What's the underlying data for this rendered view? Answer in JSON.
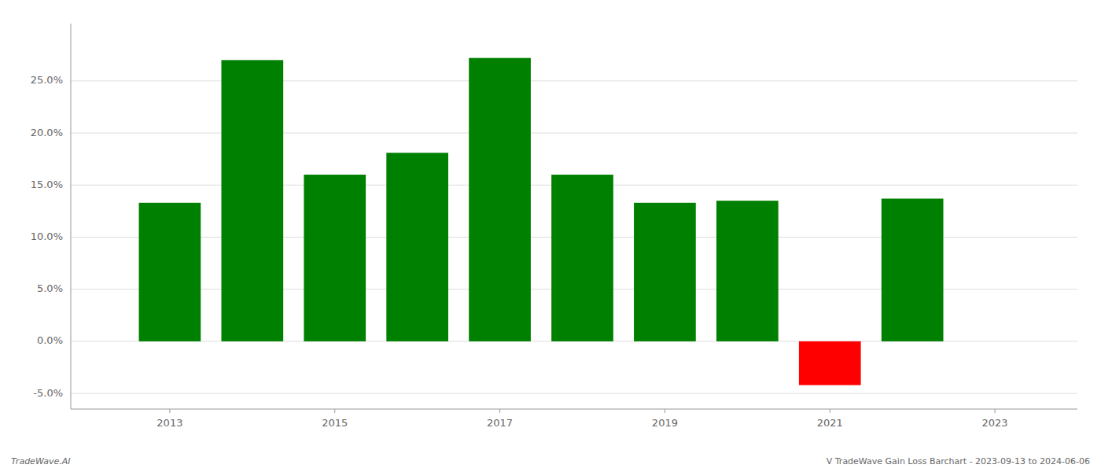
{
  "chart_data": {
    "type": "bar",
    "x": [
      2013,
      2014,
      2015,
      2016,
      2017,
      2018,
      2019,
      2020,
      2021,
      2022
    ],
    "values": [
      0.133,
      0.27,
      0.16,
      0.181,
      0.272,
      0.16,
      0.133,
      0.135,
      -0.042,
      0.137
    ],
    "colors": [
      "#008000",
      "#008000",
      "#008000",
      "#008000",
      "#008000",
      "#008000",
      "#008000",
      "#008000",
      "#ff0000",
      "#008000"
    ],
    "xlim": [
      2011.8,
      2024.0
    ],
    "xticks": [
      2013,
      2015,
      2017,
      2019,
      2021,
      2023
    ],
    "ylim": [
      -0.065,
      0.305
    ],
    "yticks": [
      {
        "value": -0.05,
        "label": "-5.0%"
      },
      {
        "value": 0.0,
        "label": "0.0%"
      },
      {
        "value": 0.05,
        "label": "5.0%"
      },
      {
        "value": 0.1,
        "label": "10.0%"
      },
      {
        "value": 0.15,
        "label": "15.0%"
      },
      {
        "value": 0.2,
        "label": "20.0%"
      },
      {
        "value": 0.25,
        "label": "25.0%"
      }
    ],
    "grid": true,
    "annotations": [
      "TradeWave.AI",
      "V TradeWave Gain Loss Barchart - 2023-09-13 to 2024-06-06"
    ]
  }
}
